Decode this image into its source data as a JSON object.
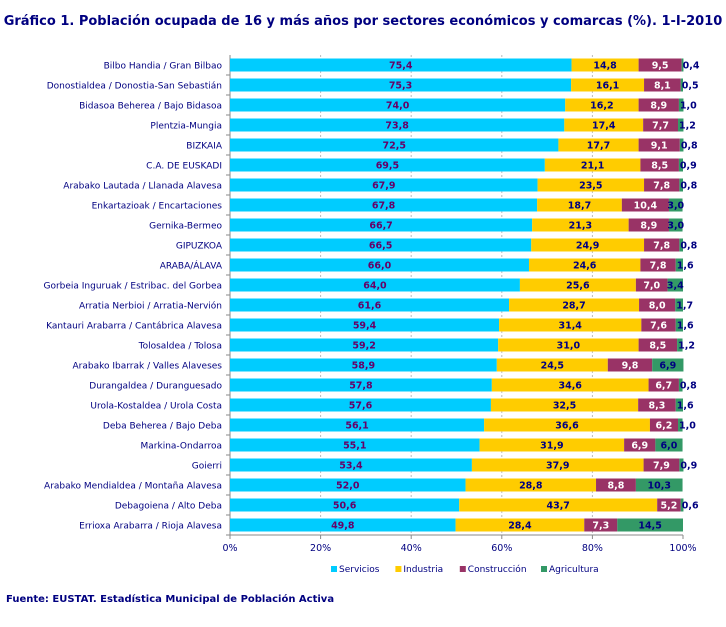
{
  "chart_data": {
    "type": "bar",
    "orientation": "horizontal",
    "stacked": true,
    "percent": true,
    "title": "Gráfico 1. Población ocupada de 16 y más años por sectores económicos y comarcas (%). 1-I-2010",
    "source": "Fuente: EUSTAT. Estadística Municipal de Población Activa",
    "xlim": [
      0,
      100
    ],
    "xticks": [
      "0%",
      "20%",
      "40%",
      "60%",
      "80%",
      "100%"
    ],
    "legend_position": "bottom",
    "categories": [
      "Bilbo Handia / Gran Bilbao",
      "Donostialdea / Donostia-San Sebastián",
      "Bidasoa Beherea / Bajo Bidasoa",
      "Plentzia-Mungia",
      "BIZKAIA",
      "C.A. DE EUSKADI",
      "Arabako Lautada / Llanada Alavesa",
      "Enkartazioak / Encartaciones",
      "Gernika-Bermeo",
      "GIPUZKOA",
      "ARABA/ÁLAVA",
      "Gorbeia Inguruak / Estribac. del Gorbea",
      "Arratia Nerbioi / Arratia-Nervión",
      "Kantauri Arabarra / Cantábrica Alavesa",
      "Tolosaldea / Tolosa",
      "Arabako Ibarrak / Valles Alaveses",
      "Durangaldea / Duranguesado",
      "Urola-Kostaldea / Urola Costa",
      "Deba Beherea / Bajo Deba",
      "Markina-Ondarroa",
      "Goierri",
      "Arabako Mendialdea / Montaña Alavesa",
      "Debagoiena / Alto Deba",
      "Errioxa Arabarra / Rioja Alavesa"
    ],
    "series": [
      {
        "name": "Servicios",
        "color": "#00CCFF",
        "label_color": "#660066",
        "values": [
          75.4,
          75.3,
          74.0,
          73.8,
          72.5,
          69.5,
          67.9,
          67.8,
          66.7,
          66.5,
          66.0,
          64.0,
          61.6,
          59.4,
          59.2,
          58.9,
          57.8,
          57.6,
          56.1,
          55.1,
          53.4,
          52.0,
          50.6,
          49.8
        ]
      },
      {
        "name": "Industria",
        "color": "#FFCC00",
        "label_color": "#000080",
        "values": [
          14.8,
          16.1,
          16.2,
          17.4,
          17.7,
          21.1,
          23.5,
          18.7,
          21.3,
          24.9,
          24.6,
          25.6,
          28.7,
          31.4,
          31.0,
          24.5,
          34.6,
          32.5,
          36.6,
          31.9,
          37.9,
          28.8,
          43.7,
          28.4
        ]
      },
      {
        "name": "Construcción",
        "color": "#993366",
        "label_color": "#FFFFFF",
        "values": [
          9.5,
          8.1,
          8.9,
          7.7,
          9.1,
          8.5,
          7.8,
          10.4,
          8.9,
          7.8,
          7.8,
          7.0,
          8.0,
          7.6,
          8.5,
          9.8,
          6.7,
          8.3,
          6.2,
          6.9,
          7.9,
          8.8,
          5.2,
          7.3
        ]
      },
      {
        "name": "Agricultura",
        "color": "#339966",
        "label_color": "#000080",
        "values": [
          0.4,
          0.5,
          1.0,
          1.2,
          0.8,
          0.9,
          0.8,
          3.0,
          3.0,
          0.8,
          1.6,
          3.4,
          1.7,
          1.6,
          1.2,
          6.9,
          0.8,
          1.6,
          1.0,
          6.0,
          0.9,
          10.3,
          0.6,
          14.5
        ]
      }
    ]
  }
}
